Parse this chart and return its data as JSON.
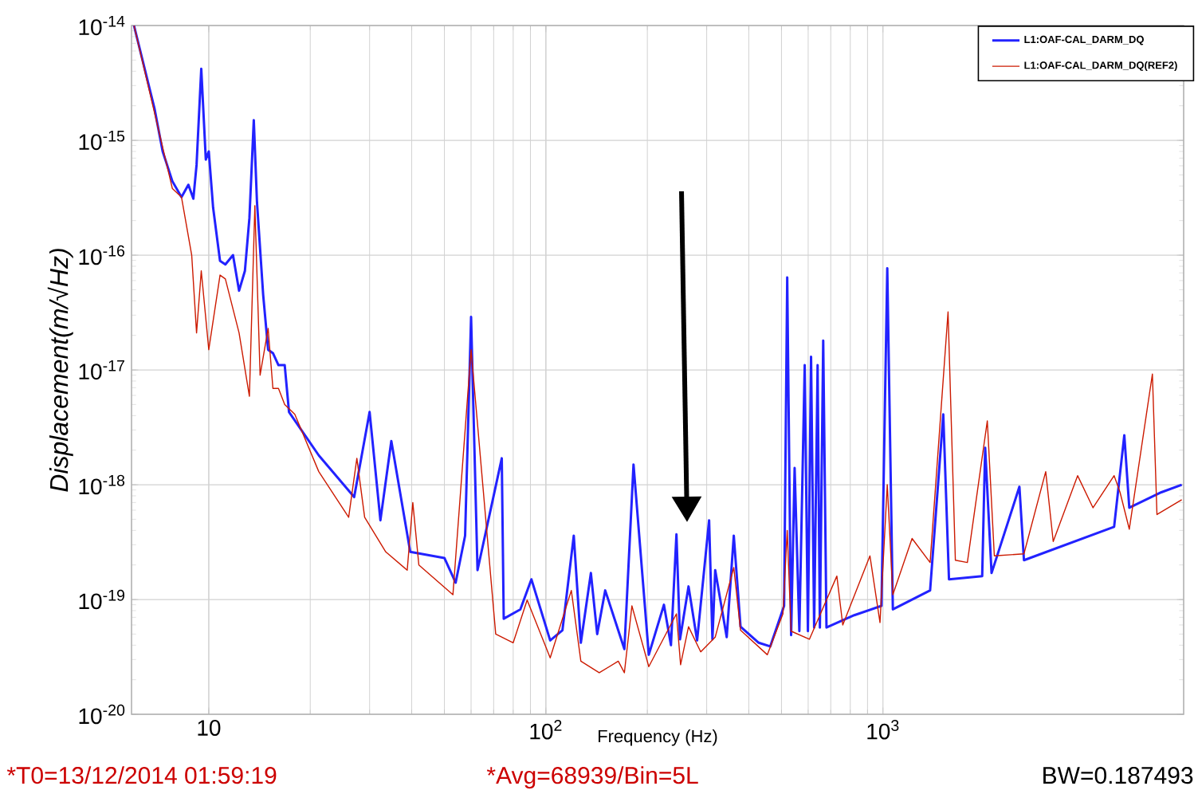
{
  "chart_data": {
    "type": "line",
    "xlabel": "Frequency (Hz)",
    "ylabel": "Displacement(m/√Hz)",
    "log": "xy",
    "grid": true,
    "legend": "top right",
    "xlim": [
      5.9,
      7800
    ],
    "ylim": [
      1e-20,
      1e-14
    ],
    "xticks": [
      {
        "value": 10,
        "label": "10"
      },
      {
        "value": 100,
        "label": "10$^{2}$"
      },
      {
        "value": 1000,
        "label": "10$^{3}$"
      }
    ],
    "yticks": [
      {
        "value": 1e-20,
        "label": "10$^{-20}$"
      },
      {
        "value": 1e-19,
        "label": "10$^{-19}$"
      },
      {
        "value": 1e-18,
        "label": "10$^{-18}$"
      },
      {
        "value": 1e-17,
        "label": "10$^{-17}$"
      },
      {
        "value": 1e-16,
        "label": "10$^{-16}$"
      },
      {
        "value": 1e-15,
        "label": "10$^{-15}$"
      },
      {
        "value": 1e-14,
        "label": "10$^{-14}$"
      }
    ],
    "annotations": [
      "*T0=13/12/2014 01:59:19",
      "*Avg=68939/Bin=5L",
      "BW=0.187493"
    ],
    "series": [
      {
        "name": "L1:OAF-CAL_DARM_DQ",
        "color": "#2222ff",
        "x": [
          6.0,
          6.9,
          7.3,
          7.8,
          8.3,
          8.7,
          9.0,
          9.2,
          9.5,
          9.8,
          10,
          10.3,
          10.8,
          11.2,
          11.8,
          12.3,
          12.8,
          13.2,
          13.6,
          13.9,
          14.5,
          15.0,
          15.5,
          16.1,
          16.8,
          17.3,
          21.2,
          27,
          30,
          32.3,
          34.8,
          39.6,
          50,
          54,
          57.6,
          60,
          62.7,
          74,
          75,
          84,
          90.6,
          103,
          112,
          121,
          127,
          136,
          142,
          150,
          171,
          182,
          202,
          224,
          235,
          244,
          250,
          265,
          281,
          305,
          312,
          318,
          344,
          361,
          378,
          428,
          463,
          509,
          520,
          534,
          547,
          565,
          586,
          599,
          612,
          625,
          640,
          650,
          665,
          680,
          822,
          990,
          1030,
          1070,
          1380,
          1510,
          1570,
          1970,
          2010,
          2100,
          2540,
          2620,
          4850,
          5200,
          5380,
          6700,
          7700
        ],
        "values": [
          1e-14,
          1.9e-15,
          8e-16,
          4.4e-16,
          3.2e-16,
          4.1e-16,
          3.1e-16,
          6.1e-16,
          4.2e-15,
          6.8e-16,
          8e-16,
          2.6e-16,
          8.9e-17,
          8.3e-17,
          1e-16,
          4.9e-17,
          7.3e-17,
          2.1e-16,
          1.5e-15,
          2.9e-16,
          4.5e-17,
          1.5e-17,
          1.4e-17,
          1.1e-17,
          1.1e-17,
          4.3e-18,
          1.8e-18,
          7.8e-19,
          4.3e-18,
          4.9e-19,
          2.4e-18,
          2.6e-19,
          2.3e-19,
          1.4e-19,
          3.6e-19,
          2.9e-17,
          1.8e-19,
          1.7e-18,
          6.8e-20,
          8.2e-20,
          1.5e-19,
          4.4e-20,
          5.4e-20,
          3.6e-19,
          4.2e-20,
          1.7e-19,
          5e-20,
          1.2e-19,
          3.7e-20,
          1.5e-18,
          3.3e-20,
          9e-20,
          4e-20,
          3.7e-19,
          4.5e-20,
          1.3e-19,
          4.4e-20,
          4.9e-19,
          4.5e-20,
          1.8e-19,
          4.7e-20,
          3.6e-19,
          5.8e-20,
          4.2e-20,
          3.9e-20,
          8.8e-20,
          6.4e-17,
          4.9e-20,
          1.4e-18,
          5.3e-20,
          1.1e-17,
          5.3e-20,
          1.3e-17,
          5.7e-20,
          1.1e-17,
          5.7e-20,
          1.8e-17,
          5.7e-20,
          7.3e-20,
          8.8e-20,
          7.7e-17,
          8.2e-20,
          1.2e-19,
          4.1e-18,
          1.5e-19,
          1.6e-19,
          2.1e-18,
          1.7e-19,
          9.6e-19,
          2.2e-19,
          4.3e-19,
          2.7e-18,
          6.3e-19,
          8.6e-19,
          1e-18
        ]
      },
      {
        "name": "L1:OAF-CAL_DARM_DQ(REF2)",
        "color": "#cc1a00",
        "x": [
          6.0,
          7.8,
          8.3,
          8.9,
          9.2,
          9.5,
          10,
          10.8,
          11.2,
          12.3,
          13.2,
          13.7,
          14.2,
          15.0,
          15.5,
          16.1,
          16.8,
          18,
          21.2,
          26,
          27.5,
          29,
          33.5,
          38.8,
          40.3,
          42,
          53,
          60,
          71,
          80,
          88,
          103,
          119,
          127,
          144,
          164,
          171,
          180,
          202,
          244,
          251,
          265,
          288,
          318,
          361,
          378,
          454,
          505,
          520,
          534,
          605,
          730,
          760,
          915,
          980,
          1030,
          1070,
          1220,
          1380,
          1560,
          1640,
          1780,
          2040,
          2140,
          2620,
          3040,
          3200,
          3780,
          4200,
          4850,
          5050,
          5380,
          6300,
          6500,
          7700
        ],
        "values": [
          1e-14,
          3.8e-16,
          3.2e-16,
          1e-16,
          2.1e-17,
          7.3e-17,
          1.5e-17,
          6.7e-17,
          6.2e-17,
          2.1e-17,
          5.9e-18,
          2.7e-16,
          9e-18,
          2.3e-17,
          6.9e-18,
          6.9e-18,
          5e-18,
          4.1e-18,
          1.3e-18,
          5.2e-19,
          1.7e-18,
          5.2e-19,
          2.6e-19,
          1.8e-19,
          7e-19,
          2e-19,
          1.1e-19,
          1.5e-17,
          5e-20,
          4.2e-20,
          9.9e-20,
          3.1e-20,
          1.2e-19,
          2.9e-20,
          2.3e-20,
          2.9e-20,
          2.3e-20,
          8.8e-20,
          2.6e-20,
          7.5e-20,
          2.7e-20,
          5.8e-20,
          3.5e-20,
          4.7e-20,
          1.9e-19,
          5.4e-20,
          3.3e-20,
          7.5e-20,
          4e-19,
          5.3e-20,
          4.5e-20,
          1.6e-19,
          6e-20,
          2.4e-19,
          6.3e-20,
          1e-18,
          1.1e-19,
          3.4e-19,
          2.1e-19,
          3.2e-17,
          2.2e-19,
          2.1e-19,
          3.6e-18,
          2.4e-19,
          2.5e-19,
          1.3e-18,
          3.2e-19,
          1.2e-18,
          6.3e-19,
          1.2e-18,
          8.6e-19,
          4.1e-19,
          9.2e-18,
          5.5e-19,
          7.4e-19
        ]
      }
    ]
  }
}
